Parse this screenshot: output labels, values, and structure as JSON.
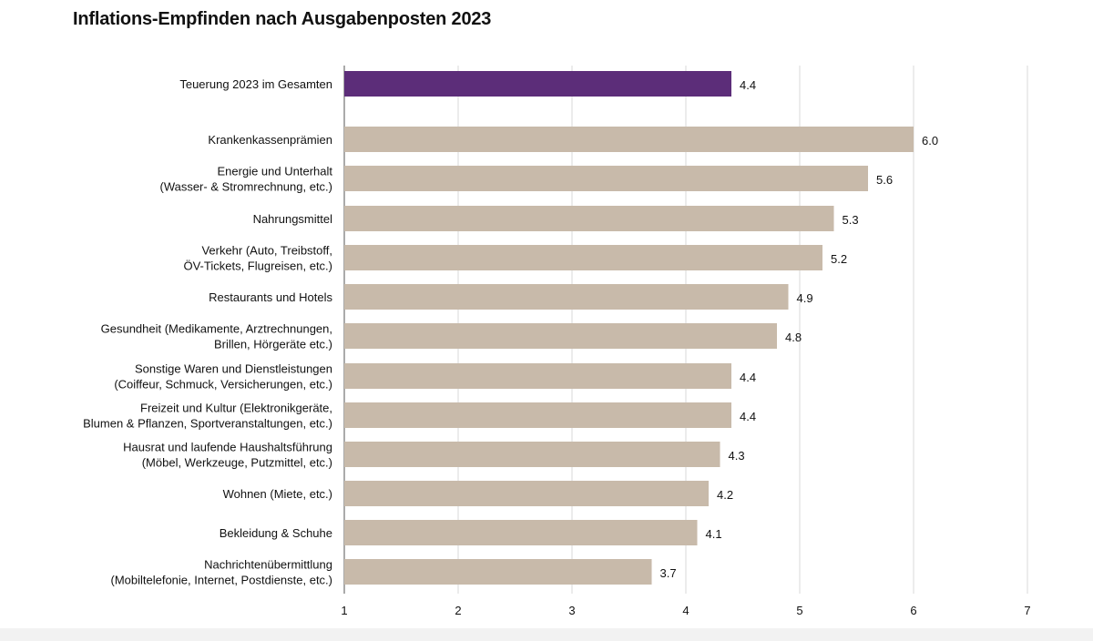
{
  "chart_data": {
    "type": "bar",
    "orientation": "horizontal",
    "title": "Inflations-Empfinden nach Ausgabenposten 2023",
    "categories": [
      [
        "Teuerung 2023 im Gesamten"
      ],
      [
        "Krankenkassenprämien"
      ],
      [
        "Energie und Unterhalt",
        "(Wasser- & Stromrechnung, etc.)"
      ],
      [
        "Nahrungsmittel"
      ],
      [
        "Verkehr (Auto, Treibstoff,",
        "ÖV-Tickets, Flugreisen, etc.)"
      ],
      [
        "Restaurants und Hotels"
      ],
      [
        "Gesundheit (Medikamente, Arztrechnungen,",
        "Brillen, Hörgeräte etc.)"
      ],
      [
        "Sonstige Waren und Dienstleistungen",
        "(Coiffeur, Schmuck, Versicherungen, etc.)"
      ],
      [
        "Freizeit und Kultur (Elektronikgeräte,",
        "Blumen & Pflanzen, Sportveranstaltungen, etc.)"
      ],
      [
        "Hausrat und laufende Haushaltsführung",
        "(Möbel, Werkzeuge, Putzmittel, etc.)"
      ],
      [
        "Wohnen (Miete, etc.)"
      ],
      [
        "Bekleidung & Schuhe"
      ],
      [
        "Nachrichtenübermittlung",
        "(Mobiltelefonie, Internet, Postdienste, etc.)"
      ]
    ],
    "values": [
      4.4,
      6.0,
      5.6,
      5.3,
      5.2,
      4.9,
      4.8,
      4.4,
      4.4,
      4.3,
      4.2,
      4.1,
      3.7
    ],
    "value_labels": [
      "4.4",
      "6.0",
      "5.6",
      "5.3",
      "5.2",
      "4.9",
      "4.8",
      "4.4",
      "4.4",
      "4.3",
      "4.2",
      "4.1",
      "3.7"
    ],
    "highlight_index": 0,
    "xlim": [
      1,
      7
    ],
    "xticks": [
      "1",
      "2",
      "3",
      "4",
      "5",
      "6",
      "7"
    ],
    "grid": true,
    "xlabel": "",
    "ylabel": "",
    "colors": {
      "highlight": "#5c2d79",
      "bar": "#c8baaa",
      "grid": "#d9d9d9",
      "axis": "#555555"
    }
  }
}
